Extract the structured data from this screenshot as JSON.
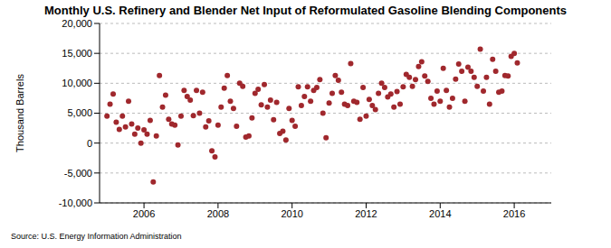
{
  "chart_data": {
    "type": "scatter",
    "title": "Monthly U.S. Refinery and Blender Net Input of Reformulated Gasoline Blending Components",
    "y_label": "Thousand Barrels",
    "annotation": "Source: U.S. Energy Information Administration",
    "color": "#a0282d",
    "marker": "circle",
    "grid": true,
    "xlim": [
      2004.8,
      2017
    ],
    "xticks": [
      2006,
      2008,
      2010,
      2012,
      2014,
      2016
    ],
    "ylim": [
      -10000,
      20000
    ],
    "yticks": [
      {
        "value": -10000,
        "label": "-10,000"
      },
      {
        "value": -5000,
        "label": "-5,000"
      },
      0,
      {
        "value": 5000,
        "label": "5,000"
      },
      {
        "value": 10000,
        "label": "10,000"
      },
      {
        "value": 15000,
        "label": "15,000"
      },
      {
        "value": 20000,
        "label": "20,000"
      }
    ],
    "x": [
      2005,
      2005.083,
      2005.167,
      2005.25,
      2005.333,
      2005.417,
      2005.5,
      2005.583,
      2005.667,
      2005.75,
      2005.833,
      2005.917,
      2006,
      2006.083,
      2006.167,
      2006.25,
      2006.333,
      2006.417,
      2006.5,
      2006.583,
      2006.667,
      2006.75,
      2006.833,
      2006.917,
      2007,
      2007.083,
      2007.167,
      2007.25,
      2007.333,
      2007.417,
      2007.5,
      2007.583,
      2007.667,
      2007.75,
      2007.833,
      2007.917,
      2008,
      2008.083,
      2008.167,
      2008.25,
      2008.333,
      2008.417,
      2008.5,
      2008.583,
      2008.667,
      2008.75,
      2008.833,
      2008.917,
      2009,
      2009.083,
      2009.167,
      2009.25,
      2009.333,
      2009.417,
      2009.5,
      2009.583,
      2009.667,
      2009.75,
      2009.833,
      2009.917,
      2010,
      2010.083,
      2010.167,
      2010.25,
      2010.333,
      2010.417,
      2010.5,
      2010.583,
      2010.667,
      2010.75,
      2010.833,
      2010.917,
      2011,
      2011.083,
      2011.167,
      2011.25,
      2011.333,
      2011.417,
      2011.5,
      2011.583,
      2011.667,
      2011.75,
      2011.833,
      2011.917,
      2012,
      2012.083,
      2012.167,
      2012.25,
      2012.333,
      2012.417,
      2012.5,
      2012.583,
      2012.667,
      2012.75,
      2012.833,
      2012.917,
      2013,
      2013.083,
      2013.167,
      2013.25,
      2013.333,
      2013.417,
      2013.5,
      2013.583,
      2013.667,
      2013.75,
      2013.833,
      2013.917,
      2014,
      2014.083,
      2014.167,
      2014.25,
      2014.333,
      2014.417,
      2014.5,
      2014.583,
      2014.667,
      2014.75,
      2014.833,
      2014.917,
      2015,
      2015.083,
      2015.167,
      2015.25,
      2015.333,
      2015.417,
      2015.5,
      2015.583,
      2015.667,
      2015.75,
      2015.833,
      2015.917,
      2016,
      2016.083
    ],
    "values": [
      4500,
      6500,
      8200,
      3500,
      2300,
      4500,
      2700,
      7000,
      3200,
      1500,
      2500,
      0,
      2200,
      1500,
      3800,
      -6500,
      1200,
      11300,
      6000,
      8000,
      4000,
      3200,
      3000,
      -300,
      4500,
      8800,
      7800,
      7200,
      4600,
      8800,
      5000,
      8500,
      2700,
      3700,
      -1300,
      -2300,
      3000,
      6000,
      9200,
      11300,
      7000,
      5800,
      2800,
      10000,
      9500,
      1000,
      1200,
      4200,
      8300,
      9000,
      6400,
      9800,
      6000,
      7200,
      3900,
      6800,
      1600,
      2000,
      500,
      5800,
      3800,
      2800,
      9400,
      6300,
      7800,
      9400,
      7000,
      8800,
      9300,
      10600,
      5000,
      900,
      6700,
      8300,
      11300,
      10500,
      8500,
      6500,
      6300,
      13300,
      7000,
      6800,
      4000,
      9300,
      4500,
      7300,
      6300,
      5600,
      8300,
      10000,
      9300,
      7700,
      8200,
      6000,
      8600,
      6500,
      9400,
      11500,
      11000,
      9500,
      10600,
      12800,
      13600,
      11200,
      10300,
      7500,
      6500,
      8700,
      7000,
      12500,
      8800,
      6000,
      7500,
      10700,
      13200,
      12000,
      7000,
      12700,
      12000,
      11000,
      9500,
      15700,
      8700,
      11000,
      6500,
      14000,
      12000,
      8500,
      8700,
      11300,
      11200,
      14500,
      15000,
      13400
    ]
  }
}
